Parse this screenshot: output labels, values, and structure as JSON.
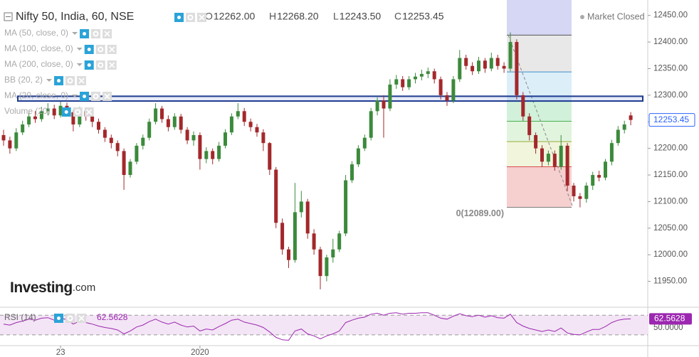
{
  "chart_data": {
    "type": "candlestick",
    "title": "Nifty 50, India, 60, NSE",
    "ohlc": [
      {
        "key": "O",
        "text": "12262.00"
      },
      {
        "key": "H",
        "text": "12268.20"
      },
      {
        "key": "L",
        "text": "12243.50"
      },
      {
        "key": "C",
        "text": "12253.45"
      }
    ],
    "status": "Market Closed",
    "indicators": [
      "MA (50, close, 0)",
      "MA (100, close, 0)",
      "MA (200, close, 0)",
      "BB (20, 2)",
      "MA (20, close, 0)",
      "Volume (20)"
    ],
    "watermark": [
      "Investing",
      ".com"
    ],
    "up_color": "#3c8a3c",
    "down_color": "#a3282b",
    "ylim": [
      11904,
      12479
    ],
    "yticks": [
      {
        "value": 12450,
        "label": "12450.00"
      },
      {
        "value": 12400,
        "label": "12400.00"
      },
      {
        "value": 12350,
        "label": "12350.00"
      },
      {
        "value": 12300,
        "label": "12300.00"
      },
      {
        "value": 12250,
        "label": "12250.00"
      },
      {
        "value": 12200,
        "label": "12200.00"
      },
      {
        "value": 12150,
        "label": "12150.00"
      },
      {
        "value": 12100,
        "label": "12100.00"
      },
      {
        "value": 12050,
        "label": "12050.00"
      },
      {
        "value": 12000,
        "label": "12000.00"
      },
      {
        "value": 11950,
        "label": "11950.00"
      }
    ],
    "categories": [
      null,
      null,
      null,
      null,
      null,
      null,
      null,
      null,
      null,
      "23",
      null,
      null,
      null,
      null,
      null,
      null,
      null,
      null,
      null,
      null,
      null,
      null,
      null,
      null,
      null,
      null,
      null,
      null,
      null,
      null,
      null,
      "2020",
      null,
      null,
      null,
      null,
      null,
      null,
      null,
      null,
      null,
      null,
      null,
      null,
      null,
      null,
      null,
      null,
      null,
      null,
      null,
      null,
      null,
      null,
      null,
      null,
      null,
      null,
      null,
      null,
      null,
      null,
      null,
      null,
      null,
      null,
      null,
      null,
      null,
      null,
      null,
      null,
      null,
      null,
      null,
      null,
      null,
      null,
      null,
      null,
      null,
      null,
      null,
      null,
      null,
      null,
      null,
      null,
      null,
      null,
      null,
      null,
      null,
      null,
      null,
      null,
      null,
      null,
      null,
      null
    ],
    "open": [
      12225,
      12215,
      12200,
      12230,
      12245,
      12260,
      12255,
      12270,
      12275,
      12262,
      12280,
      12268,
      12245,
      12270,
      12260,
      12250,
      12235,
      12220,
      12210,
      12195,
      12150,
      12175,
      12205,
      12220,
      12250,
      12275,
      12255,
      12240,
      12260,
      12235,
      12215,
      12225,
      12180,
      12195,
      12180,
      12205,
      12230,
      12260,
      12270,
      12250,
      12240,
      12230,
      12210,
      12160,
      12060,
      12010,
      11990,
      12080,
      12100,
      12040,
      12010,
      11960,
      11995,
      12010,
      12040,
      12140,
      12170,
      12200,
      12220,
      12270,
      12290,
      12275,
      12320,
      12330,
      12315,
      12330,
      12335,
      12340,
      12345,
      12330,
      12300,
      12290,
      12330,
      12370,
      12355,
      12345,
      12365,
      12350,
      12370,
      12355,
      12350,
      12400,
      12300,
      12260,
      12225,
      12200,
      12175,
      12190,
      12165,
      12205,
      12130,
      12110,
      12105,
      12130,
      12150,
      12145,
      12175,
      12210,
      12235,
      12262
    ],
    "high": [
      12235,
      12222,
      12238,
      12252,
      12268,
      12270,
      12278,
      12285,
      12282,
      12288,
      12286,
      12272,
      12278,
      12276,
      12265,
      12256,
      12240,
      12226,
      12215,
      12200,
      12180,
      12210,
      12226,
      12256,
      12285,
      12280,
      12262,
      12266,
      12265,
      12240,
      12232,
      12230,
      12202,
      12200,
      12212,
      12236,
      12266,
      12285,
      12276,
      12256,
      12246,
      12236,
      12212,
      12165,
      12068,
      12015,
      12135,
      12120,
      12105,
      12048,
      12015,
      12000,
      12030,
      12045,
      12150,
      12176,
      12206,
      12226,
      12276,
      12296,
      12300,
      12330,
      12338,
      12336,
      12336,
      12342,
      12348,
      12352,
      12350,
      12335,
      12306,
      12336,
      12385,
      12376,
      12362,
      12372,
      12370,
      12380,
      12376,
      12362,
      12418,
      12405,
      12306,
      12266,
      12230,
      12206,
      12196,
      12196,
      12225,
      12210,
      12135,
      12116,
      12136,
      12156,
      12158,
      12180,
      12216,
      12242,
      12252,
      12268.2
    ],
    "low": [
      12205,
      12190,
      12195,
      12225,
      12240,
      12248,
      12250,
      12262,
      12255,
      12258,
      12260,
      12232,
      12240,
      12252,
      12240,
      12228,
      12212,
      12200,
      12185,
      12122,
      12145,
      12170,
      12198,
      12215,
      12245,
      12248,
      12232,
      12235,
      12228,
      12208,
      12205,
      12160,
      12172,
      12170,
      12175,
      12200,
      12225,
      12255,
      12242,
      12232,
      12222,
      12195,
      12150,
      12050,
      12000,
      11975,
      11985,
      12070,
      12030,
      12000,
      11935,
      11950,
      11985,
      12005,
      12035,
      12135,
      12165,
      12195,
      12215,
      12262,
      12220,
      12270,
      12312,
      12308,
      12310,
      12322,
      12328,
      12332,
      12322,
      12292,
      12280,
      12285,
      12325,
      12348,
      12338,
      12340,
      12342,
      12345,
      12348,
      12342,
      12345,
      12292,
      12252,
      12215,
      12190,
      12165,
      12168,
      12158,
      12160,
      12120,
      12100,
      12089,
      12098,
      12122,
      12138,
      12140,
      12168,
      12205,
      12228,
      12243.5
    ],
    "close": [
      12215,
      12200,
      12230,
      12245,
      12260,
      12255,
      12270,
      12275,
      12262,
      12280,
      12268,
      12245,
      12270,
      12260,
      12250,
      12235,
      12220,
      12210,
      12195,
      12150,
      12175,
      12205,
      12220,
      12250,
      12275,
      12255,
      12240,
      12260,
      12235,
      12215,
      12225,
      12180,
      12195,
      12180,
      12205,
      12230,
      12260,
      12270,
      12250,
      12240,
      12230,
      12210,
      12160,
      12060,
      12010,
      11990,
      12080,
      12100,
      12040,
      12010,
      11960,
      11995,
      12010,
      12040,
      12140,
      12170,
      12200,
      12220,
      12270,
      12290,
      12275,
      12320,
      12330,
      12315,
      12330,
      12335,
      12340,
      12345,
      12330,
      12300,
      12290,
      12330,
      12370,
      12355,
      12345,
      12365,
      12350,
      12370,
      12355,
      12350,
      12400,
      12300,
      12260,
      12225,
      12200,
      12175,
      12190,
      12165,
      12205,
      12130,
      12110,
      12105,
      12130,
      12150,
      12145,
      12175,
      12210,
      12235,
      12245,
      12253.45
    ],
    "zone": [
      12289,
      12298
    ],
    "zone_color": "#1d3b8f",
    "fib": {
      "levels": [
        12089,
        12165.5,
        12212.8,
        12251,
        12289,
        12343.7,
        12413
      ],
      "colors": [
        "#f4c7c7",
        "#eef3d6",
        "#dbf2d8",
        "#c9eed3",
        "#d6ebf7",
        "#e4e4e4",
        "#cfd0f3"
      ],
      "line_colors": [
        "#777777",
        "#d84a4a",
        "#9aac3a",
        "#4caf50",
        "#3aa776",
        "#3b8fc9",
        "#555555"
      ],
      "label": "0(12089.00)"
    },
    "rsi": {
      "name": "RSI (14)",
      "color": "#9c27b0",
      "ylim": [
        14,
        79
      ],
      "levels": [
        30,
        70
      ],
      "yticks": [
        {
          "value": 50,
          "label": "50.0000"
        }
      ],
      "values": [
        52,
        50,
        55,
        58,
        62,
        60,
        64,
        65,
        60,
        64,
        61,
        52,
        58,
        55,
        52,
        48,
        45,
        43,
        40,
        32,
        38,
        46,
        50,
        57,
        62,
        56,
        52,
        56,
        50,
        46,
        48,
        38,
        42,
        40,
        47,
        53,
        60,
        62,
        56,
        53,
        50,
        45,
        36,
        25,
        20,
        19,
        38,
        42,
        32,
        28,
        22,
        28,
        32,
        38,
        55,
        60,
        64,
        66,
        72,
        74,
        70,
        74,
        75,
        72,
        74,
        74,
        75,
        75,
        70,
        64,
        62,
        68,
        73,
        69,
        67,
        70,
        66,
        69,
        65,
        64,
        72,
        55,
        48,
        43,
        40,
        37,
        40,
        37,
        44,
        34,
        31,
        30,
        36,
        41,
        41,
        47,
        55,
        60,
        62,
        62.5628
      ]
    }
  }
}
